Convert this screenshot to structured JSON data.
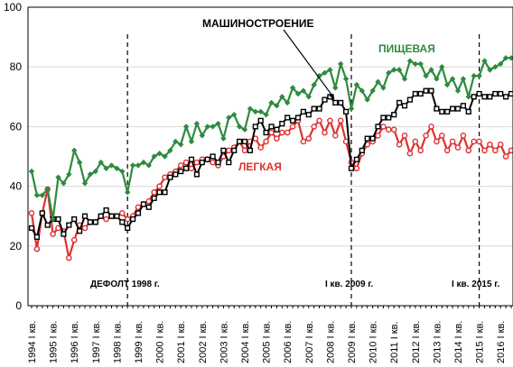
{
  "chart_data": {
    "type": "line",
    "ylim": [
      0,
      100
    ],
    "y_ticks": [
      0,
      20,
      40,
      60,
      80,
      100
    ],
    "grid": "horizontal",
    "x_tick_labels": [
      "1994 I кв.",
      "1995 I кв.",
      "1996 I кв.",
      "1997 I кв.",
      "1998 I кв.",
      "1999 I кв.",
      "2000 I кв.",
      "2001 I кв.",
      "2002 I кв.",
      "2003 I кв.",
      "2004 I кв.",
      "2005 I кв.",
      "2006 I кв.",
      "2007 I кв.",
      "2008 I кв.",
      "2009 I кв.",
      "2010 I кв.",
      "2011 I кв.",
      "2012 I кв.",
      "2013 I кв.",
      "2014 I кв.",
      "2015 I кв.",
      "2016 I кв."
    ],
    "annotations": [
      {
        "label": "ДЕФОЛТ 1998 г.",
        "quarter_index": 18
      },
      {
        "label": "I кв. 2009 г.",
        "quarter_index": 60
      },
      {
        "label": "I кв. 2015 г.",
        "quarter_index": 84
      }
    ],
    "colors": {
      "food": "#2e8b3e",
      "machine": "#000000",
      "light": "#e03030"
    },
    "series": [
      {
        "key": "food",
        "name": "ПИЩЕВАЯ",
        "values": [
          45,
          37,
          37,
          39,
          29,
          43,
          41,
          44,
          52,
          48,
          41,
          44,
          45,
          48,
          46,
          47,
          46,
          45,
          38,
          47,
          47,
          48,
          47,
          50,
          51,
          50,
          52,
          55,
          54,
          60,
          55,
          61,
          57,
          60,
          60,
          61,
          56,
          63,
          64,
          60,
          59,
          66,
          65,
          65,
          64,
          68,
          67,
          70,
          68,
          73,
          71,
          72,
          70,
          74,
          77,
          78,
          79,
          73,
          81,
          76,
          66,
          74,
          72,
          69,
          72,
          75,
          73,
          78,
          79,
          79,
          76,
          82,
          81,
          81,
          77,
          79,
          76,
          80,
          74,
          76,
          72,
          76,
          70,
          77,
          77,
          82,
          79,
          80,
          81,
          83,
          83
        ]
      },
      {
        "key": "machine",
        "name": "МАШИНОСТРОЕНИЕ",
        "values": [
          26,
          23,
          31,
          27,
          29,
          29,
          24,
          27,
          29,
          25,
          30,
          28,
          28,
          30,
          32,
          30,
          30,
          28,
          26,
          29,
          31,
          34,
          33,
          36,
          38,
          38,
          43,
          44,
          45,
          46,
          49,
          44,
          48,
          49,
          50,
          48,
          52,
          48,
          52,
          55,
          55,
          52,
          60,
          62,
          58,
          60,
          59,
          61,
          63,
          62,
          63,
          65,
          64,
          66,
          66,
          69,
          70,
          68,
          68,
          65,
          46,
          49,
          52,
          56,
          56,
          60,
          63,
          63,
          64,
          68,
          67,
          69,
          71,
          71,
          72,
          72,
          66,
          65,
          65,
          66,
          66,
          67,
          65,
          70,
          71,
          70,
          70,
          71,
          71,
          70,
          71
        ]
      },
      {
        "key": "light",
        "name": "ЛЕГКАЯ",
        "values": [
          31,
          19,
          31,
          39,
          24,
          26,
          25,
          16,
          22,
          27,
          26,
          28,
          28,
          30,
          29,
          30,
          30,
          31,
          29,
          30,
          33,
          34,
          35,
          38,
          40,
          43,
          44,
          45,
          47,
          48,
          46,
          48,
          49,
          49,
          48,
          47,
          50,
          52,
          53,
          55,
          52,
          55,
          56,
          53,
          55,
          58,
          56,
          58,
          58,
          60,
          62,
          55,
          56,
          60,
          62,
          58,
          62,
          57,
          62,
          55,
          48,
          46,
          51,
          54,
          55,
          57,
          60,
          59,
          59,
          54,
          57,
          51,
          55,
          52,
          57,
          60,
          55,
          57,
          52,
          55,
          53,
          57,
          52,
          55,
          55,
          52,
          54,
          52,
          54,
          50,
          52
        ]
      }
    ]
  }
}
